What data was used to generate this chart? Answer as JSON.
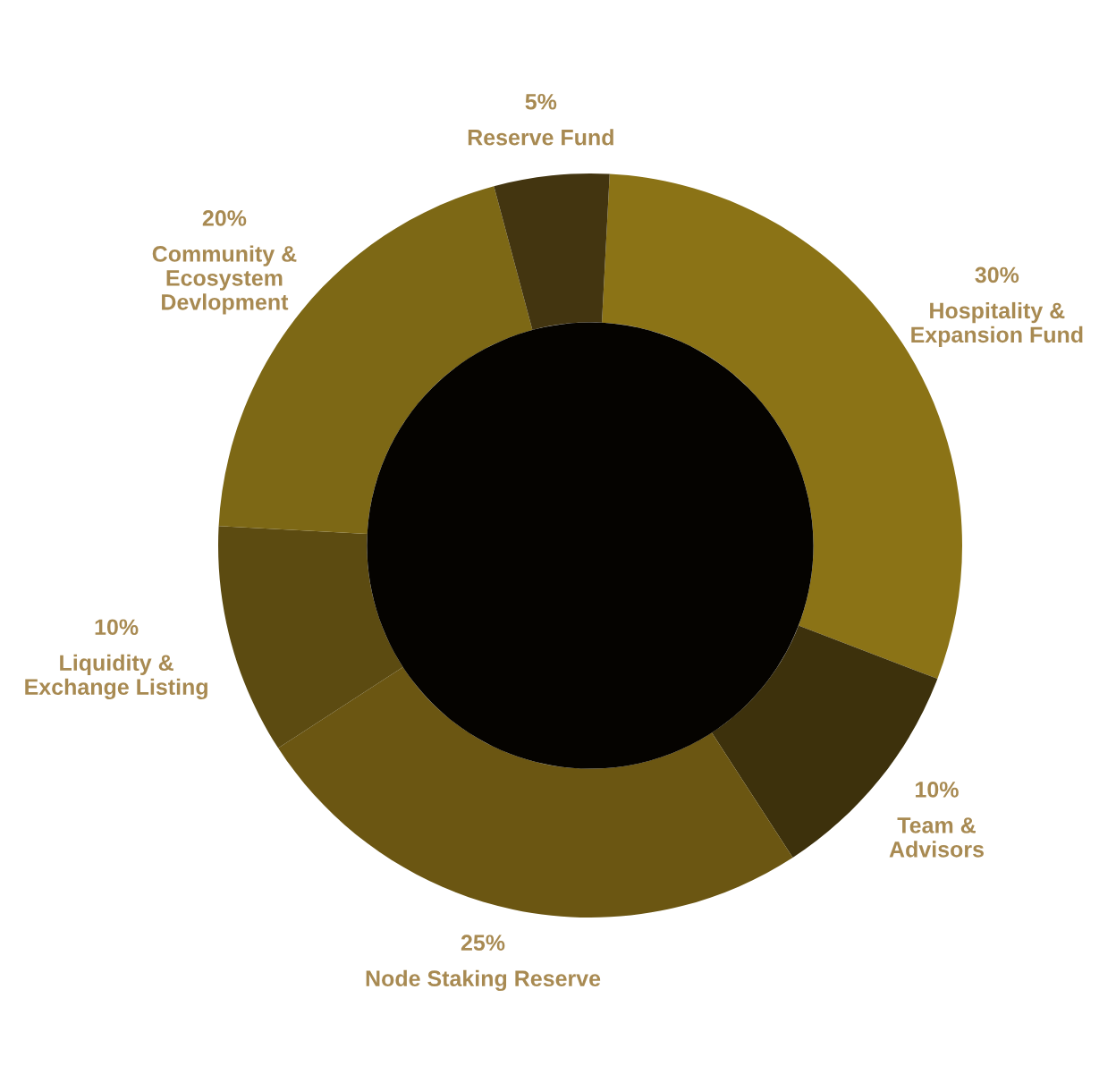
{
  "chart_data": {
    "type": "donut",
    "categories": [
      "Hospitality &\nExpansion Fund",
      "Team &\nAdvisors",
      "Node Staking Reserve",
      "Liquidity &\nExchange Listing",
      "Community &\nEcosystem\nDevlopment",
      "Reserve Fund"
    ],
    "values": [
      30,
      10,
      25,
      10,
      20,
      5
    ],
    "value_labels": [
      "30%",
      "10%",
      "25%",
      "10%",
      "20%",
      "5%"
    ],
    "colors": [
      "#8b7316",
      "#3d310c",
      "#6b5612",
      "#5c4b11",
      "#7d6815",
      "#433510"
    ]
  }
}
